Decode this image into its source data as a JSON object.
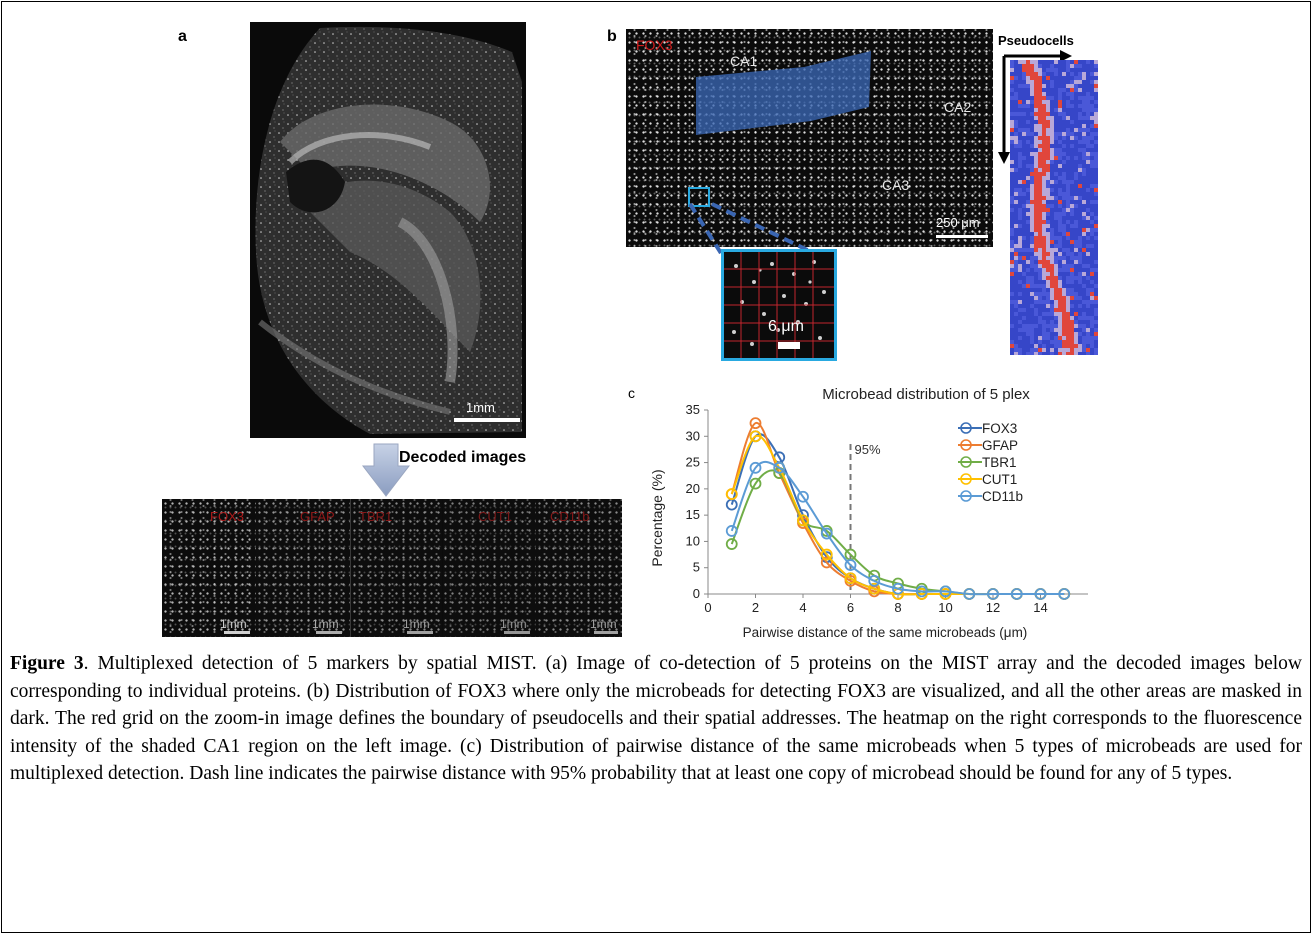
{
  "panels": {
    "a": {
      "letter": "a",
      "scalebar_label": "1mm",
      "decoded_label": "Decoded images",
      "decoded_tiles": [
        {
          "marker": "FOX3",
          "scalebar_label": "1mm"
        },
        {
          "marker": "GFAP",
          "scalebar_label": "1mm"
        },
        {
          "marker": "TBR1",
          "scalebar_label": "1mm"
        },
        {
          "marker": "CUT1",
          "scalebar_label": "1mm"
        },
        {
          "marker": "CD11b",
          "scalebar_label": "1mm"
        }
      ]
    },
    "b": {
      "letter": "b",
      "marker": "FOX3",
      "regions": {
        "ca1": "CA1",
        "ca2": "CA2",
        "ca3": "CA3"
      },
      "scalebar_label": "250 μm",
      "zoom_scalebar_label": "6 μm",
      "heatmap_label": "Pseudocells"
    },
    "c": {
      "letter": "c"
    }
  },
  "chart_data": {
    "type": "line",
    "title": "Microbead distribution of 5 plex",
    "xlabel": "Pairwise distance of the same microbeads (μm)",
    "ylabel": "Percentage (%)",
    "xlim": [
      0,
      16
    ],
    "ylim": [
      0,
      35
    ],
    "x_ticks": [
      0,
      2,
      4,
      6,
      8,
      10,
      12,
      14
    ],
    "y_ticks": [
      0,
      5,
      10,
      15,
      20,
      25,
      30,
      35
    ],
    "legend_position": "top-right",
    "annotation": {
      "x": 6,
      "label": "95%",
      "style": "dashed"
    },
    "x": [
      1,
      2,
      3,
      4,
      5,
      6,
      7,
      8,
      9,
      10,
      11,
      12,
      13,
      14,
      15
    ],
    "series": [
      {
        "name": "FOX3",
        "color": "#3b6fb6",
        "values": [
          17,
          30,
          26,
          15,
          7,
          3,
          1,
          0,
          0,
          0,
          0,
          0,
          0,
          0,
          0
        ]
      },
      {
        "name": "GFAP",
        "color": "#ed7d31",
        "values": [
          19,
          32.5,
          23,
          13.5,
          6,
          2.5,
          0.5,
          0,
          0,
          0,
          0,
          0,
          0,
          0,
          0
        ]
      },
      {
        "name": "TBR1",
        "color": "#70ad47",
        "values": [
          9.5,
          21,
          23,
          14,
          12,
          7.5,
          3.5,
          2,
          1,
          0.5,
          0,
          0,
          0,
          0,
          0
        ]
      },
      {
        "name": "CUT1",
        "color": "#ffc000",
        "values": [
          19,
          30,
          24,
          14,
          7.5,
          3,
          1,
          0,
          0,
          0,
          0,
          0,
          0,
          0,
          0
        ]
      },
      {
        "name": "CD11b",
        "color": "#5b9bd5",
        "values": [
          12,
          24,
          24,
          18.5,
          11.5,
          5.5,
          2.5,
          1,
          0.5,
          0.5,
          0,
          0,
          0,
          0,
          0
        ]
      }
    ]
  },
  "caption": {
    "label": "Figure 3",
    "text": ". Multiplexed detection of 5 markers by spatial MIST. (a) Image of co-detection of 5 proteins on the MIST array and the decoded images below corresponding to individual proteins. (b) Distribution of FOX3 where only the microbeads for detecting FOX3 are visualized, and all the other areas are masked in dark. The red grid on the zoom-in image defines the boundary of pseudocells and their spatial addresses. The heatmap on the right corresponds to the fluorescence intensity of the shaded CA1 region on the left image. (c) Distribution of pairwise distance of the same microbeads when 5 types of microbeads are used for multiplexed detection. Dash line indicates the pairwise distance with 95% probability that at least one copy of microbead should be found for any of 5 types."
  }
}
